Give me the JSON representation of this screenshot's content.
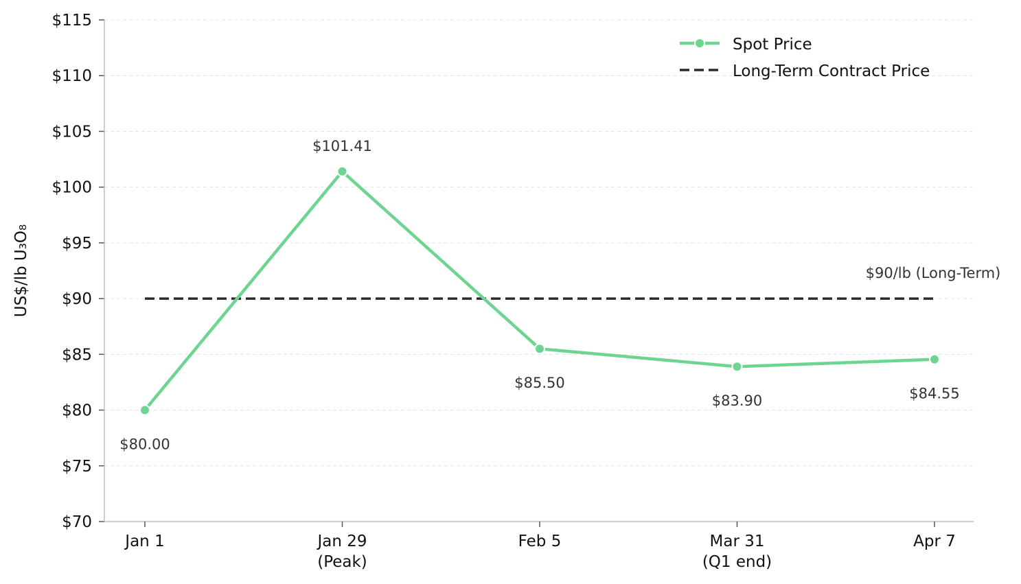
{
  "chart_data": {
    "type": "line",
    "title": "",
    "xlabel": "",
    "ylabel": "US$/lb U₃O₈",
    "categories": [
      "Jan 1",
      "Jan 29\n(Peak)",
      "Feb 5",
      "Mar 31\n(Q1 end)",
      "Apr 7"
    ],
    "ylim": [
      70,
      115
    ],
    "yticks": [
      70,
      75,
      80,
      85,
      90,
      95,
      100,
      105,
      110,
      115
    ],
    "ytick_labels": [
      "$70",
      "$75",
      "$80",
      "$85",
      "$90",
      "$95",
      "$100",
      "$105",
      "$110",
      "$115"
    ],
    "grid": true,
    "legend_position": "top-right",
    "series": [
      {
        "name": "Spot Price",
        "values": [
          80.0,
          101.41,
          85.5,
          83.9,
          84.55
        ],
        "data_labels": [
          "$80.00",
          "$101.41",
          "$85.50",
          "$83.90",
          "$84.55"
        ],
        "color": "#6dd591",
        "style": "solid-with-markers"
      },
      {
        "name": "Long-Term Contract Price",
        "values": [
          90,
          90,
          90,
          90,
          90
        ],
        "color": "#2b2b2b",
        "style": "dashed"
      }
    ],
    "annotations": [
      {
        "text": "$90/lb (Long-Term)",
        "x_index": 4,
        "y": 90
      }
    ]
  }
}
